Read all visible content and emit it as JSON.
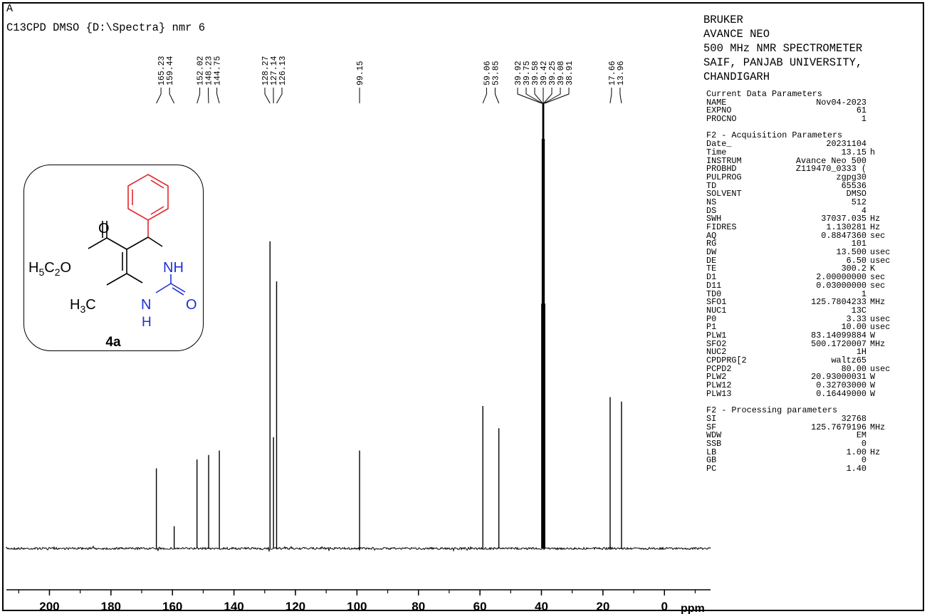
{
  "header": {
    "line1": "A",
    "line2": "C13CPD DMSO {D:\\Spectra} nmr 6"
  },
  "instrument": {
    "lines": [
      "BRUKER",
      "AVANCE NEO",
      "500 MHz NMR SPECTROMETER",
      "SAIF, PANJAB UNIVERSITY,",
      "CHANDIGARH"
    ]
  },
  "params": {
    "current_title": "Current Data Parameters",
    "current": [
      {
        "k": "NAME",
        "v": "Nov04-2023",
        "u": ""
      },
      {
        "k": "EXPNO",
        "v": "61",
        "u": ""
      },
      {
        "k": "PROCNO",
        "v": "1",
        "u": ""
      }
    ],
    "acq_title": "F2 - Acquisition Parameters",
    "acq": [
      {
        "k": "Date_",
        "v": "20231104",
        "u": ""
      },
      {
        "k": "Time",
        "v": "13.15",
        "u": "h"
      },
      {
        "k": "INSTRUM",
        "v": "Avance Neo 500",
        "u": ""
      },
      {
        "k": "PROBHD",
        "v": "Z119470_0333 (",
        "u": ""
      },
      {
        "k": "PULPROG",
        "v": "zgpg30",
        "u": ""
      },
      {
        "k": "TD",
        "v": "65536",
        "u": ""
      },
      {
        "k": "SOLVENT",
        "v": "DMSO",
        "u": ""
      },
      {
        "k": "NS",
        "v": "512",
        "u": ""
      },
      {
        "k": "DS",
        "v": "4",
        "u": ""
      },
      {
        "k": "SWH",
        "v": "37037.035",
        "u": "Hz"
      },
      {
        "k": "FIDRES",
        "v": "1.130281",
        "u": "Hz"
      },
      {
        "k": "AQ",
        "v": "0.8847360",
        "u": "sec"
      },
      {
        "k": "RG",
        "v": "101",
        "u": ""
      },
      {
        "k": "DW",
        "v": "13.500",
        "u": "usec"
      },
      {
        "k": "DE",
        "v": "6.50",
        "u": "usec"
      },
      {
        "k": "TE",
        "v": "300.2",
        "u": "K"
      },
      {
        "k": "D1",
        "v": "2.00000000",
        "u": "sec"
      },
      {
        "k": "D11",
        "v": "0.03000000",
        "u": "sec"
      },
      {
        "k": "TD0",
        "v": "1",
        "u": ""
      },
      {
        "k": "SFO1",
        "v": "125.7804233",
        "u": "MHz"
      },
      {
        "k": "NUC1",
        "v": "13C",
        "u": ""
      },
      {
        "k": "P0",
        "v": "3.33",
        "u": "usec"
      },
      {
        "k": "P1",
        "v": "10.00",
        "u": "usec"
      },
      {
        "k": "PLW1",
        "v": "83.14099884",
        "u": "W"
      },
      {
        "k": "SFO2",
        "v": "500.1720007",
        "u": "MHz"
      },
      {
        "k": "NUC2",
        "v": "1H",
        "u": ""
      },
      {
        "k": "CPDPRG[2",
        "v": "waltz65",
        "u": ""
      },
      {
        "k": "PCPD2",
        "v": "80.00",
        "u": "usec"
      },
      {
        "k": "PLW2",
        "v": "20.93000031",
        "u": "W"
      },
      {
        "k": "PLW12",
        "v": "0.32703000",
        "u": "W"
      },
      {
        "k": "PLW13",
        "v": "0.16449000",
        "u": "W"
      }
    ],
    "proc_title": "F2 - Processing parameters",
    "proc": [
      {
        "k": "SI",
        "v": "32768",
        "u": ""
      },
      {
        "k": "SF",
        "v": "125.7679196",
        "u": "MHz"
      },
      {
        "k": "WDW",
        "v": "EM",
        "u": ""
      },
      {
        "k": "SSB",
        "v": "0",
        "u": ""
      },
      {
        "k": "LB",
        "v": "1.00",
        "u": "Hz"
      },
      {
        "k": "GB",
        "v": "0",
        "u": ""
      },
      {
        "k": "PC",
        "v": "1.40",
        "u": ""
      }
    ]
  },
  "structure": {
    "compound_label": "4a",
    "atom_O_top": "O",
    "atom_O_right": "O",
    "ester_group": "H5C2O",
    "methyl_group": "H3C",
    "nh_upper": "NH",
    "n_lower": "N",
    "h_lower": "H",
    "colors": {
      "phenyl": "#e3262b",
      "urea": "#1d2fd6",
      "bond": "#000000"
    }
  },
  "chart_data": {
    "type": "line",
    "title": "",
    "xlabel": "ppm",
    "ylabel": "",
    "x_reversed": true,
    "xlim": [
      214,
      -15
    ],
    "x_ticks": [
      200,
      180,
      160,
      140,
      120,
      100,
      80,
      60,
      40,
      20,
      0
    ],
    "x_tick_labels": [
      "200",
      "180",
      "160",
      "140",
      "120",
      "100",
      "80",
      "60",
      "40",
      "20",
      "0"
    ],
    "peaks": [
      {
        "ppm": 165.23,
        "label": "165.23",
        "rel_height": 0.18
      },
      {
        "ppm": 159.44,
        "label": "159.44",
        "rel_height": 0.05
      },
      {
        "ppm": 152.02,
        "label": "152.02",
        "rel_height": 0.2
      },
      {
        "ppm": 148.23,
        "label": "148.23",
        "rel_height": 0.21
      },
      {
        "ppm": 144.75,
        "label": "144.75",
        "rel_height": 0.22
      },
      {
        "ppm": 128.27,
        "label": "128.27",
        "rel_height": 0.69
      },
      {
        "ppm": 127.14,
        "label": "127.14",
        "rel_height": 0.25
      },
      {
        "ppm": 126.13,
        "label": "126.13",
        "rel_height": 0.6
      },
      {
        "ppm": 99.15,
        "label": "99.15",
        "rel_height": 0.22
      },
      {
        "ppm": 59.06,
        "label": "59.06",
        "rel_height": 0.32
      },
      {
        "ppm": 53.85,
        "label": "53.85",
        "rel_height": 0.27
      },
      {
        "ppm": 39.92,
        "label": "39.92",
        "rel_height": 0.55
      },
      {
        "ppm": 39.75,
        "label": "39.75",
        "rel_height": 0.92
      },
      {
        "ppm": 39.58,
        "label": "39.58",
        "rel_height": 1.0
      },
      {
        "ppm": 39.42,
        "label": "39.42",
        "rel_height": 1.0
      },
      {
        "ppm": 39.25,
        "label": "39.25",
        "rel_height": 1.0
      },
      {
        "ppm": 39.08,
        "label": "39.08",
        "rel_height": 0.92
      },
      {
        "ppm": 38.91,
        "label": "38.91",
        "rel_height": 0.55
      },
      {
        "ppm": 17.66,
        "label": "17.66",
        "rel_height": 0.34
      },
      {
        "ppm": 13.96,
        "label": "13.96",
        "rel_height": 0.33
      }
    ]
  }
}
